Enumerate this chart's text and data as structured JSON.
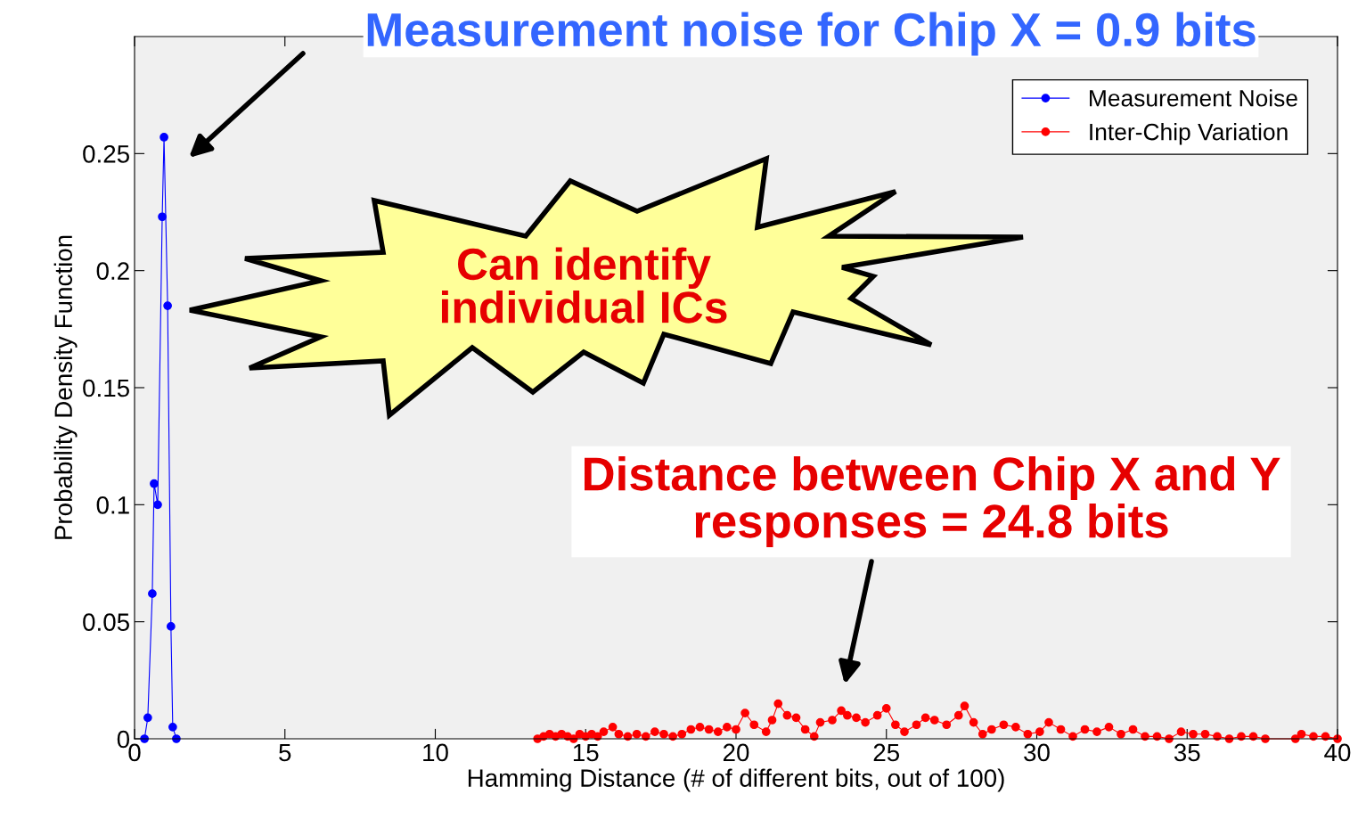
{
  "chart_data": {
    "type": "line",
    "xlabel": "Hamming Distance (# of different bits, out of 100)",
    "ylabel": "Probability Density Function",
    "xlim": [
      0,
      40
    ],
    "ylim": [
      0,
      0.3
    ],
    "xticks": [
      0,
      5,
      10,
      15,
      20,
      25,
      30,
      35,
      40
    ],
    "yticks": [
      0,
      0.05,
      0.1,
      0.15,
      0.2,
      0.25
    ],
    "grid": false,
    "legend": "top right",
    "marker": "circle",
    "line_style": "solid",
    "series": [
      {
        "name": "Measurement Noise",
        "color": "#0000ff",
        "x": [
          0.33,
          0.44,
          0.59,
          0.65,
          0.77,
          0.92,
          0.98,
          1.1,
          1.21,
          1.27,
          1.39
        ],
        "values": [
          0,
          0.009,
          0.062,
          0.109,
          0.1,
          0.223,
          0.257,
          0.185,
          0.048,
          0.005,
          0
        ]
      },
      {
        "name": "Inter-Chip Variation",
        "color": "#ff0000",
        "x": [
          13.4,
          13.6,
          13.8,
          14.0,
          14.2,
          14.4,
          14.6,
          14.8,
          15.0,
          15.2,
          15.4,
          15.6,
          15.9,
          16.1,
          16.4,
          16.7,
          17.0,
          17.3,
          17.6,
          17.9,
          18.2,
          18.5,
          18.8,
          19.1,
          19.4,
          19.7,
          20.0,
          20.3,
          20.6,
          21.0,
          21.2,
          21.4,
          21.7,
          22.0,
          22.3,
          22.6,
          22.8,
          23.2,
          23.5,
          23.7,
          24.0,
          24.3,
          24.7,
          25.0,
          25.3,
          25.6,
          26.0,
          26.3,
          26.6,
          27.0,
          27.4,
          27.6,
          27.9,
          28.2,
          28.5,
          28.9,
          29.3,
          29.7,
          30.1,
          30.4,
          30.8,
          31.2,
          31.6,
          32.0,
          32.4,
          32.8,
          33.2,
          33.6,
          34.0,
          34.4,
          34.8,
          35.2,
          35.6,
          36.0,
          36.4,
          36.8,
          37.2,
          37.6,
          38.6,
          38.8,
          39.2,
          39.6,
          40.0
        ],
        "values": [
          0.0,
          0.001,
          0.002,
          0.001,
          0.002,
          0.001,
          0.0,
          0.002,
          0.001,
          0.002,
          0.001,
          0.003,
          0.005,
          0.002,
          0.001,
          0.002,
          0.001,
          0.003,
          0.002,
          0.001,
          0.002,
          0.004,
          0.005,
          0.004,
          0.003,
          0.005,
          0.004,
          0.011,
          0.006,
          0.003,
          0.008,
          0.015,
          0.01,
          0.009,
          0.004,
          0.001,
          0.007,
          0.008,
          0.012,
          0.01,
          0.009,
          0.007,
          0.01,
          0.013,
          0.006,
          0.003,
          0.006,
          0.009,
          0.008,
          0.006,
          0.01,
          0.014,
          0.007,
          0.002,
          0.004,
          0.006,
          0.005,
          0.002,
          0.003,
          0.007,
          0.004,
          0.001,
          0.004,
          0.003,
          0.005,
          0.002,
          0.004,
          0.001,
          0.001,
          0.0,
          0.003,
          0.002,
          0.002,
          0.001,
          0.0,
          0.001,
          0.001,
          0.0,
          0.0,
          0.002,
          0.001,
          0.001,
          0.0
        ]
      }
    ],
    "annotations": [
      "Measurement noise for Chip X = 0.9 bits",
      "Can identify\nindividual ICs",
      "Distance between Chip X and Y\nresponses = 24.8 bits"
    ]
  }
}
